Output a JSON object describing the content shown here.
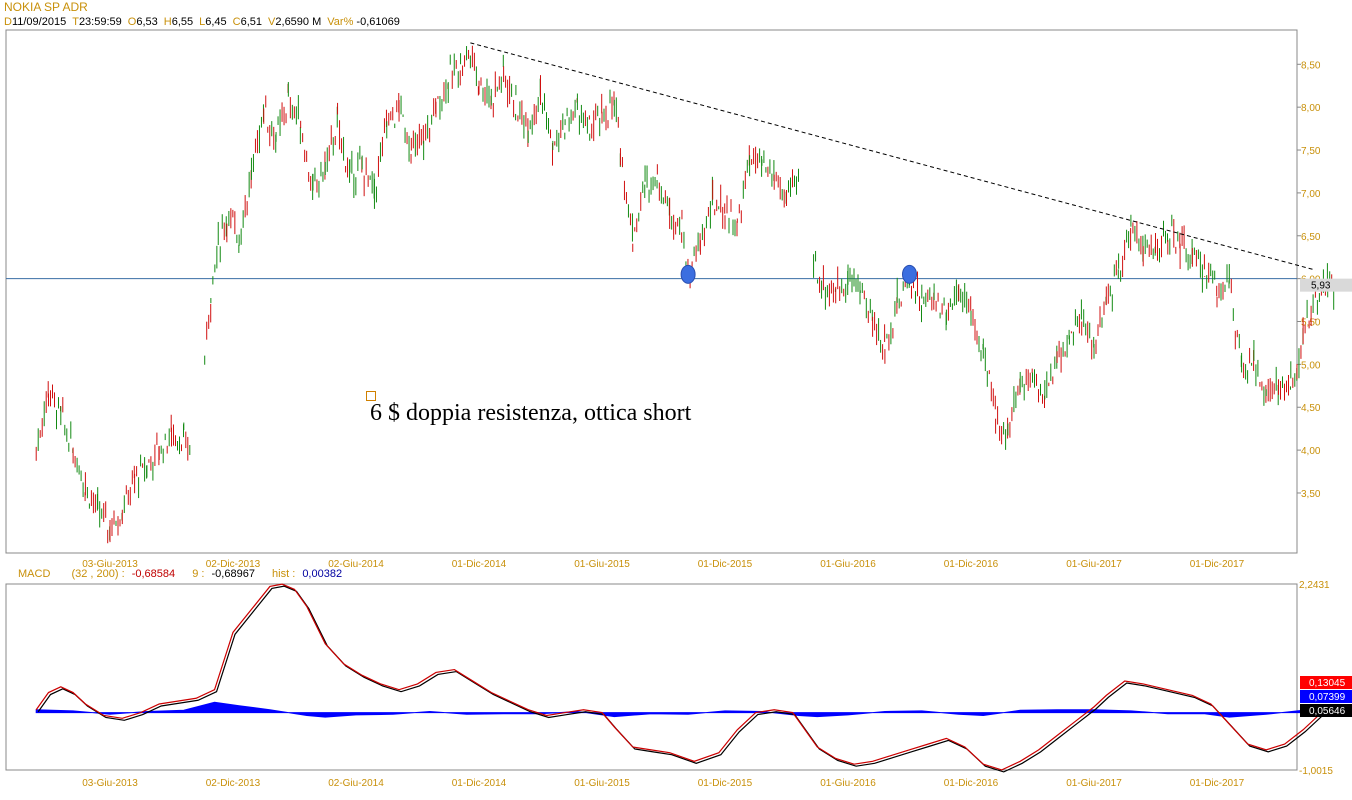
{
  "header": {
    "title": "NOKIA SP ADR",
    "fields": [
      {
        "label": "D",
        "value": "11/09/2015"
      },
      {
        "label": "T",
        "value": "23:59:59"
      },
      {
        "label": "O",
        "value": "6,53"
      },
      {
        "label": "H",
        "value": "6,55"
      },
      {
        "label": "L",
        "value": "6,45"
      },
      {
        "label": "C",
        "value": "6,51"
      },
      {
        "label": "V",
        "value": "2,6590 M"
      },
      {
        "label": "Var%",
        "value": "-0,61069"
      }
    ]
  },
  "macd_header": {
    "label": "MACD",
    "params": "(32 , 200) :",
    "macd_value": "-0,68584",
    "signal_label": "9 :",
    "signal_value": "-0,68967",
    "hist_label": "hist :",
    "hist_value": "0,00382"
  },
  "annotation": {
    "text": "6 $ doppia resistenza, ottica short"
  },
  "chart_data": [
    {
      "type": "candlestick",
      "x_tick_labels": [
        "03-Giu-2013",
        "02-Dic-2013",
        "02-Giu-2014",
        "01-Dic-2014",
        "01-Giu-2015",
        "01-Dic-2015",
        "01-Giu-2016",
        "01-Dic-2016",
        "01-Giu-2017",
        "01-Dic-2017"
      ],
      "x_tick_positions": [
        0.5,
        1.5,
        2.5,
        3.5,
        4.5,
        5.5,
        6.5,
        7.5,
        8.5,
        9.5
      ],
      "y_tick_labels": [
        "3,50",
        "4,00",
        "4,50",
        "5,00",
        "5,50",
        "6,00",
        "6,50",
        "7,00",
        "7,50",
        "8,00",
        "8,50"
      ],
      "ylim": [
        2.8,
        8.9
      ],
      "last_price_label": "5,93",
      "horizontal_line": {
        "value": 6.0,
        "color": "#3a6ea5"
      },
      "trendline": {
        "start": {
          "t": 3.43,
          "price": 8.75
        },
        "end": {
          "t": 10.3,
          "price": 6.1
        }
      },
      "markers": [
        {
          "t": 5.2,
          "price": 6.05
        },
        {
          "t": 7.0,
          "price": 6.05
        }
      ],
      "series": [
        {
          "key": "price",
          "points": [
            [
              -0.1,
              4.0
            ],
            [
              0.0,
              4.7
            ],
            [
              0.1,
              4.4
            ],
            [
              0.2,
              4.0
            ],
            [
              0.3,
              3.6
            ],
            [
              0.4,
              3.3
            ],
            [
              0.5,
              3.1
            ],
            [
              0.6,
              3.3
            ],
            [
              0.7,
              3.65
            ],
            [
              0.8,
              3.8
            ],
            [
              0.9,
              4.0
            ],
            [
              1.0,
              4.2
            ],
            [
              1.1,
              4.1
            ],
            [
              1.15,
              4.0
            ],
            [
              1.27,
              5.1
            ],
            [
              1.32,
              5.8
            ],
            [
              1.38,
              6.4
            ],
            [
              1.45,
              6.7
            ],
            [
              1.55,
              6.5
            ],
            [
              1.65,
              7.2
            ],
            [
              1.75,
              8.0
            ],
            [
              1.85,
              7.6
            ],
            [
              1.95,
              8.1
            ],
            [
              2.05,
              7.8
            ],
            [
              2.15,
              7.0
            ],
            [
              2.25,
              7.3
            ],
            [
              2.35,
              7.8
            ],
            [
              2.45,
              7.2
            ],
            [
              2.55,
              7.3
            ],
            [
              2.65,
              7.0
            ],
            [
              2.75,
              7.8
            ],
            [
              2.85,
              8.0
            ],
            [
              2.95,
              7.5
            ],
            [
              3.05,
              7.6
            ],
            [
              3.15,
              8.0
            ],
            [
              3.25,
              8.3
            ],
            [
              3.35,
              8.5
            ],
            [
              3.43,
              8.65
            ],
            [
              3.5,
              8.3
            ],
            [
              3.6,
              8.1
            ],
            [
              3.7,
              8.4
            ],
            [
              3.8,
              8.0
            ],
            [
              3.9,
              7.8
            ],
            [
              4.0,
              8.2
            ],
            [
              4.1,
              7.5
            ],
            [
              4.2,
              7.8
            ],
            [
              4.3,
              8.0
            ],
            [
              4.4,
              7.7
            ],
            [
              4.5,
              7.9
            ],
            [
              4.6,
              8.0
            ],
            [
              4.65,
              7.5
            ],
            [
              4.75,
              6.5
            ],
            [
              4.85,
              7.1
            ],
            [
              4.95,
              7.2
            ],
            [
              5.05,
              6.8
            ],
            [
              5.15,
              6.6
            ],
            [
              5.2,
              6.05
            ],
            [
              5.3,
              6.4
            ],
            [
              5.4,
              6.9
            ],
            [
              5.5,
              6.8
            ],
            [
              5.6,
              6.6
            ],
            [
              5.7,
              7.4
            ],
            [
              5.8,
              7.3
            ],
            [
              5.9,
              7.2
            ],
            [
              6.0,
              6.9
            ],
            [
              6.1,
              7.2
            ],
            [
              6.22,
              6.2
            ],
            [
              6.3,
              5.9
            ],
            [
              6.4,
              5.85
            ],
            [
              6.5,
              6.0
            ],
            [
              6.6,
              5.9
            ],
            [
              6.7,
              5.5
            ],
            [
              6.8,
              5.2
            ],
            [
              6.9,
              5.7
            ],
            [
              7.0,
              6.05
            ],
            [
              7.1,
              5.7
            ],
            [
              7.2,
              5.8
            ],
            [
              7.3,
              5.6
            ],
            [
              7.4,
              5.9
            ],
            [
              7.5,
              5.6
            ],
            [
              7.6,
              5.1
            ],
            [
              7.7,
              4.4
            ],
            [
              7.8,
              4.2
            ],
            [
              7.9,
              4.8
            ],
            [
              8.0,
              4.9
            ],
            [
              8.1,
              4.6
            ],
            [
              8.2,
              5.1
            ],
            [
              8.3,
              5.3
            ],
            [
              8.4,
              5.5
            ],
            [
              8.5,
              5.2
            ],
            [
              8.6,
              5.7
            ],
            [
              8.7,
              6.1
            ],
            [
              8.8,
              6.6
            ],
            [
              8.9,
              6.4
            ],
            [
              9.0,
              6.3
            ],
            [
              9.1,
              6.5
            ],
            [
              9.2,
              6.4
            ],
            [
              9.3,
              6.2
            ],
            [
              9.4,
              6.1
            ],
            [
              9.5,
              5.9
            ],
            [
              9.6,
              6.0
            ],
            [
              9.7,
              4.9
            ],
            [
              9.8,
              5.0
            ],
            [
              9.9,
              4.7
            ],
            [
              10.0,
              4.7
            ],
            [
              10.1,
              4.8
            ],
            [
              10.15,
              4.8
            ],
            [
              10.2,
              5.4
            ],
            [
              10.3,
              5.7
            ],
            [
              10.4,
              5.9
            ],
            [
              10.45,
              5.93
            ]
          ]
        }
      ]
    },
    {
      "type": "line",
      "x_tick_labels": [
        "03-Giu-2013",
        "02-Dic-2013",
        "02-Giu-2014",
        "01-Dic-2014",
        "01-Giu-2015",
        "01-Dic-2015",
        "01-Giu-2016",
        "01-Dic-2016",
        "01-Giu-2017",
        "01-Dic-2017"
      ],
      "y_tick_labels": [
        "2,2431",
        "-1,0015"
      ],
      "ylim": [
        -1.0015,
        2.2431
      ],
      "value_boxes": [
        {
          "label": "0,13045",
          "color": "#ff0000"
        },
        {
          "label": "0,07399",
          "color": "#0000ff"
        },
        {
          "label": "0,05646",
          "color": "#000000"
        }
      ],
      "series": [
        {
          "key": "macd",
          "color": "#cc0000",
          "points": [
            [
              -0.1,
              0.05
            ],
            [
              0.0,
              0.35
            ],
            [
              0.1,
              0.45
            ],
            [
              0.2,
              0.35
            ],
            [
              0.3,
              0.15
            ],
            [
              0.45,
              -0.05
            ],
            [
              0.6,
              -0.1
            ],
            [
              0.75,
              0.0
            ],
            [
              0.9,
              0.15
            ],
            [
              1.05,
              0.2
            ],
            [
              1.2,
              0.25
            ],
            [
              1.35,
              0.4
            ],
            [
              1.5,
              1.4
            ],
            [
              1.65,
              1.8
            ],
            [
              1.8,
              2.2
            ],
            [
              1.9,
              2.24
            ],
            [
              2.0,
              2.15
            ],
            [
              2.1,
              1.85
            ],
            [
              2.25,
              1.2
            ],
            [
              2.4,
              0.85
            ],
            [
              2.55,
              0.65
            ],
            [
              2.7,
              0.5
            ],
            [
              2.85,
              0.4
            ],
            [
              3.0,
              0.5
            ],
            [
              3.15,
              0.7
            ],
            [
              3.3,
              0.75
            ],
            [
              3.45,
              0.55
            ],
            [
              3.6,
              0.35
            ],
            [
              3.75,
              0.2
            ],
            [
              3.9,
              0.05
            ],
            [
              4.05,
              -0.05
            ],
            [
              4.2,
              0.0
            ],
            [
              4.35,
              0.05
            ],
            [
              4.5,
              0.0
            ],
            [
              4.6,
              -0.25
            ],
            [
              4.75,
              -0.6
            ],
            [
              4.9,
              -0.65
            ],
            [
              5.05,
              -0.7
            ],
            [
              5.25,
              -0.85
            ],
            [
              5.45,
              -0.7
            ],
            [
              5.6,
              -0.3
            ],
            [
              5.75,
              0.0
            ],
            [
              5.9,
              0.05
            ],
            [
              6.05,
              0.0
            ],
            [
              6.25,
              -0.6
            ],
            [
              6.4,
              -0.8
            ],
            [
              6.55,
              -0.9
            ],
            [
              6.7,
              -0.85
            ],
            [
              6.85,
              -0.75
            ],
            [
              7.0,
              -0.65
            ],
            [
              7.15,
              -0.55
            ],
            [
              7.3,
              -0.45
            ],
            [
              7.45,
              -0.6
            ],
            [
              7.6,
              -0.9
            ],
            [
              7.75,
              -1.0
            ],
            [
              7.9,
              -0.85
            ],
            [
              8.05,
              -0.65
            ],
            [
              8.2,
              -0.4
            ],
            [
              8.35,
              -0.15
            ],
            [
              8.5,
              0.1
            ],
            [
              8.6,
              0.3
            ],
            [
              8.75,
              0.55
            ],
            [
              8.9,
              0.5
            ],
            [
              9.1,
              0.4
            ],
            [
              9.3,
              0.3
            ],
            [
              9.45,
              0.15
            ],
            [
              9.6,
              -0.2
            ],
            [
              9.75,
              -0.55
            ],
            [
              9.9,
              -0.65
            ],
            [
              10.05,
              -0.55
            ],
            [
              10.2,
              -0.3
            ],
            [
              10.35,
              0.0
            ],
            [
              10.45,
              0.08
            ]
          ]
        },
        {
          "key": "histogram",
          "color": "#0000ff",
          "points": [
            [
              -0.1,
              0.05
            ],
            [
              0.2,
              0.03
            ],
            [
              0.5,
              -0.03
            ],
            [
              0.8,
              0.02
            ],
            [
              1.1,
              0.04
            ],
            [
              1.35,
              0.18
            ],
            [
              1.55,
              0.12
            ],
            [
              1.8,
              0.05
            ],
            [
              2.1,
              -0.05
            ],
            [
              2.25,
              -0.08
            ],
            [
              2.5,
              -0.04
            ],
            [
              2.8,
              -0.03
            ],
            [
              3.1,
              0.02
            ],
            [
              3.4,
              -0.03
            ],
            [
              3.7,
              -0.02
            ],
            [
              4.0,
              -0.02
            ],
            [
              4.3,
              0.02
            ],
            [
              4.6,
              -0.07
            ],
            [
              4.9,
              -0.02
            ],
            [
              5.2,
              -0.03
            ],
            [
              5.5,
              0.03
            ],
            [
              5.8,
              0.02
            ],
            [
              6.1,
              -0.05
            ],
            [
              6.25,
              -0.07
            ],
            [
              6.5,
              -0.04
            ],
            [
              6.8,
              0.02
            ],
            [
              7.1,
              0.03
            ],
            [
              7.4,
              -0.03
            ],
            [
              7.6,
              -0.05
            ],
            [
              7.9,
              0.04
            ],
            [
              8.2,
              0.05
            ],
            [
              8.5,
              0.05
            ],
            [
              8.8,
              0.03
            ],
            [
              9.1,
              -0.02
            ],
            [
              9.4,
              -0.02
            ],
            [
              9.6,
              -0.08
            ],
            [
              9.9,
              -0.03
            ],
            [
              10.2,
              0.04
            ],
            [
              10.45,
              0.05
            ]
          ]
        }
      ]
    }
  ]
}
